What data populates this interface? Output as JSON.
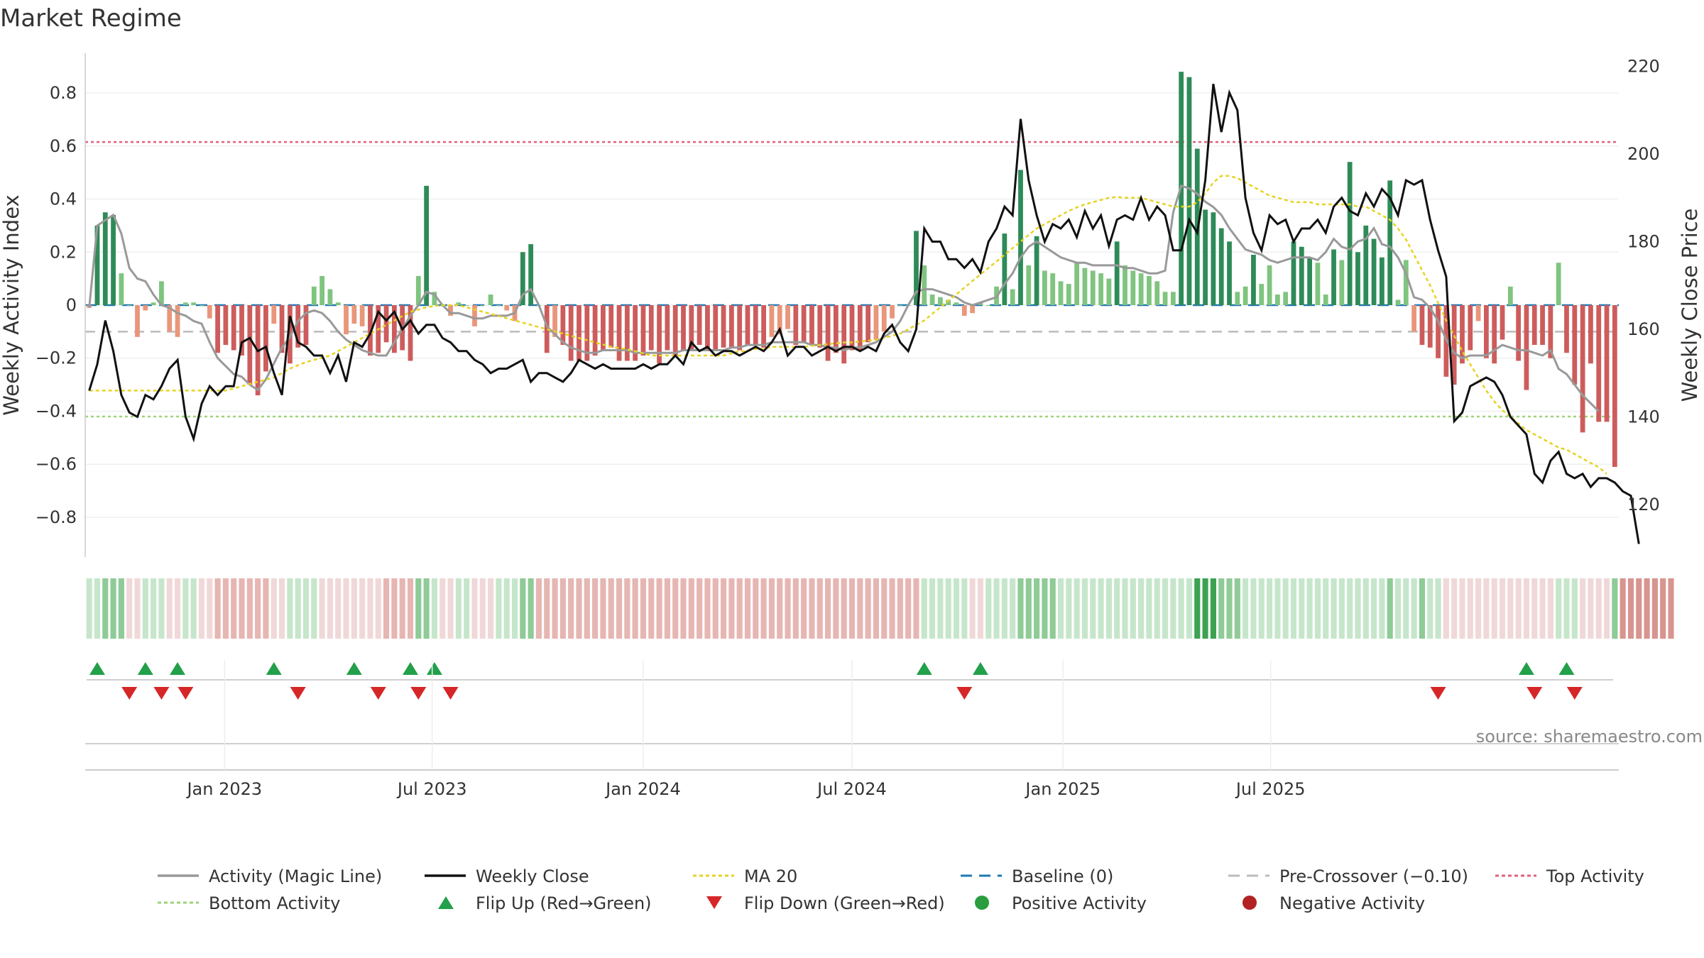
{
  "title": "Market Regime",
  "source": "source: sharemaestro.com",
  "colors": {
    "pos_strong": "#2e8b57",
    "pos_weak": "#7fc47f",
    "neg_strong": "#cd5c5c",
    "neg_weak": "#e9967a",
    "magic": "#999999",
    "close": "#111111",
    "ma": "#e6d320",
    "baseline": "#1f77b4",
    "precross": "#bbbbbb",
    "top": "#e0607e",
    "bottom": "#9ed37a",
    "flip_up": "#22a04a",
    "flip_down": "#d62728",
    "pos_dot": "#2a9d3f",
    "neg_dot": "#b22222"
  },
  "chart_data": {
    "type": "bar",
    "x_start": "2022-09-05",
    "x_step_days": 7,
    "y_left_label": "Weekly Activity Index",
    "y_right_label": "Weekly Close Price",
    "y_left_range": [
      -0.95,
      0.95
    ],
    "y_right_range": [
      108,
      223
    ],
    "y_left_ticks": [
      "0.8",
      "0.6",
      "0.4",
      "0.2",
      "0",
      "−0.2",
      "−0.4",
      "−0.6",
      "−0.8"
    ],
    "y_right_ticks": [
      "220",
      "200",
      "180",
      "160",
      "140",
      "120"
    ],
    "x_ticks": [
      "Jan 2023",
      "Jul 2023",
      "Jan 2024",
      "Jul 2024",
      "Jan 2025",
      "Jul 2025"
    ],
    "top_activity": 0.615,
    "bottom_activity": -0.42,
    "pre_crossover": -0.1,
    "baseline": 0,
    "grid": true,
    "legend_position": "bottom",
    "series": [
      {
        "name": "Weekly Activity Index (bars)",
        "values": [
          -0.01,
          0.3,
          0.35,
          0.34,
          0.12,
          0,
          -0.12,
          -0.02,
          0.01,
          0.09,
          -0.1,
          -0.12,
          0.01,
          0.01,
          0,
          -0.05,
          -0.18,
          -0.15,
          -0.17,
          -0.19,
          -0.3,
          -0.34,
          -0.25,
          -0.07,
          -0.18,
          -0.22,
          -0.16,
          -0.15,
          0.07,
          0.11,
          0.06,
          0.01,
          -0.11,
          -0.07,
          -0.08,
          -0.19,
          -0.18,
          -0.14,
          -0.18,
          -0.17,
          -0.21,
          0.11,
          0.45,
          0.05,
          0,
          -0.04,
          0.01,
          0,
          -0.08,
          0,
          0.04,
          0,
          -0.02,
          -0.06,
          0.2,
          0.23,
          0,
          -0.18,
          -0.12,
          -0.15,
          -0.21,
          -0.21,
          -0.21,
          -0.19,
          -0.17,
          -0.16,
          -0.21,
          -0.21,
          -0.21,
          -0.19,
          -0.17,
          -0.22,
          -0.17,
          -0.19,
          -0.17,
          -0.17,
          -0.15,
          -0.17,
          -0.17,
          -0.16,
          -0.16,
          -0.17,
          -0.15,
          -0.15,
          -0.16,
          -0.12,
          -0.11,
          -0.09,
          -0.15,
          -0.14,
          -0.15,
          -0.16,
          -0.21,
          -0.18,
          -0.22,
          -0.17,
          -0.17,
          -0.14,
          -0.13,
          -0.1,
          -0.05,
          0,
          0,
          0.28,
          0.15,
          0.04,
          0.03,
          0.02,
          0.01,
          -0.04,
          -0.03,
          0.01,
          0,
          0.07,
          0.27,
          0.06,
          0.51,
          0.15,
          0.26,
          0.13,
          0.12,
          0.09,
          0.08,
          0.16,
          0.14,
          0.13,
          0.12,
          0.1,
          0.24,
          0.15,
          0.13,
          0.12,
          0.11,
          0.09,
          0.05,
          0.05,
          0.88,
          0.86,
          0.59,
          0.36,
          0.35,
          0.29,
          0.24,
          0.05,
          0.07,
          0.19,
          0.08,
          0.15,
          0.04,
          0.05,
          0.24,
          0.22,
          0.18,
          0.16,
          0.04,
          0.21,
          0.17,
          0.54,
          0.2,
          0.3,
          0.25,
          0.18,
          0.47,
          0.02,
          0.17,
          -0.1,
          -0.15,
          -0.16,
          -0.2,
          -0.27,
          -0.3,
          -0.22,
          -0.17,
          -0.06,
          -0.2,
          -0.22,
          -0.13,
          0.07,
          -0.21,
          -0.32,
          -0.15,
          -0.15,
          -0.2,
          0.16,
          -0.18,
          -0.3,
          -0.48,
          -0.22,
          -0.44,
          -0.44,
          -0.61
        ]
      },
      {
        "name": "Activity (Magic Line)",
        "values": [
          -0.01,
          0.3,
          0.32,
          0.34,
          0.27,
          0.14,
          0.1,
          0.09,
          0.04,
          0,
          -0.01,
          -0.03,
          -0.04,
          -0.06,
          -0.07,
          -0.14,
          -0.2,
          -0.23,
          -0.26,
          -0.27,
          -0.3,
          -0.32,
          -0.28,
          -0.22,
          -0.16,
          -0.12,
          -0.06,
          -0.03,
          -0.02,
          -0.03,
          -0.06,
          -0.1,
          -0.13,
          -0.15,
          -0.17,
          -0.18,
          -0.19,
          -0.19,
          -0.14,
          -0.09,
          -0.04,
          0,
          0.05,
          0.04,
          0,
          -0.03,
          -0.03,
          -0.04,
          -0.05,
          -0.05,
          -0.04,
          -0.04,
          -0.04,
          -0.03,
          0.04,
          0.06,
          0,
          -0.08,
          -0.11,
          -0.14,
          -0.16,
          -0.17,
          -0.18,
          -0.18,
          -0.17,
          -0.17,
          -0.17,
          -0.17,
          -0.18,
          -0.18,
          -0.18,
          -0.18,
          -0.18,
          -0.18,
          -0.17,
          -0.17,
          -0.17,
          -0.17,
          -0.17,
          -0.17,
          -0.16,
          -0.16,
          -0.15,
          -0.15,
          -0.15,
          -0.14,
          -0.14,
          -0.14,
          -0.14,
          -0.14,
          -0.15,
          -0.15,
          -0.16,
          -0.16,
          -0.17,
          -0.16,
          -0.16,
          -0.15,
          -0.14,
          -0.12,
          -0.1,
          -0.06,
          0,
          0.05,
          0.06,
          0.06,
          0.05,
          0.04,
          0.03,
          0.01,
          0,
          0.01,
          0.02,
          0.03,
          0.08,
          0.12,
          0.18,
          0.22,
          0.24,
          0.22,
          0.2,
          0.18,
          0.17,
          0.16,
          0.16,
          0.15,
          0.15,
          0.15,
          0.15,
          0.14,
          0.14,
          0.13,
          0.12,
          0.12,
          0.13,
          0.35,
          0.45,
          0.44,
          0.42,
          0.39,
          0.37,
          0.34,
          0.29,
          0.25,
          0.21,
          0.2,
          0.19,
          0.17,
          0.16,
          0.17,
          0.18,
          0.18,
          0.18,
          0.17,
          0.2,
          0.25,
          0.22,
          0.21,
          0.24,
          0.25,
          0.29,
          0.23,
          0.22,
          0.18,
          0.12,
          0.03,
          0.02,
          -0.01,
          -0.06,
          -0.13,
          -0.18,
          -0.2,
          -0.19,
          -0.19,
          -0.19,
          -0.17,
          -0.15,
          -0.16,
          -0.17,
          -0.17,
          -0.18,
          -0.19,
          -0.17,
          -0.24,
          -0.26,
          -0.3,
          -0.34,
          -0.37,
          -0.4
        ]
      },
      {
        "name": "Weekly Close",
        "values": [
          146,
          152,
          162,
          155,
          145,
          141,
          140,
          145,
          144,
          147,
          151,
          153,
          140,
          135,
          143,
          147,
          145,
          147,
          147,
          157,
          158,
          155,
          156,
          150,
          145,
          163,
          157,
          156,
          154,
          154,
          150,
          154,
          148,
          157,
          156,
          159,
          164,
          162,
          164,
          160,
          162,
          159,
          161,
          161,
          158,
          157,
          155,
          155,
          153,
          152,
          150,
          151,
          151,
          152,
          153,
          148,
          150,
          150,
          149,
          148,
          150,
          153,
          152,
          151,
          152,
          151,
          151,
          151,
          151,
          152,
          151,
          152,
          152,
          154,
          152,
          157,
          155,
          156,
          154,
          155,
          155,
          154,
          155,
          156,
          155,
          157,
          160,
          154,
          156,
          156,
          154,
          155,
          156,
          155,
          156,
          156,
          155,
          156,
          155,
          159,
          161,
          157,
          155,
          160,
          183,
          180,
          180,
          176,
          176,
          174,
          176,
          173,
          180,
          183,
          188,
          186,
          208,
          194,
          186,
          180,
          184,
          183,
          185,
          181,
          187,
          183,
          186,
          179,
          185,
          186,
          185,
          190,
          185,
          188,
          186,
          178,
          178,
          185,
          182,
          194,
          216,
          205,
          214,
          210,
          190,
          182,
          178,
          186,
          184,
          185,
          180,
          183,
          183,
          185,
          182,
          188,
          190,
          187,
          186,
          191,
          188,
          192,
          190,
          186,
          194,
          193,
          194,
          185,
          178,
          172,
          139,
          141,
          147,
          148,
          149,
          148,
          145,
          140,
          138,
          136,
          127,
          125,
          130,
          132,
          127,
          126,
          127,
          124,
          126,
          126,
          125,
          123,
          122,
          111
        ]
      },
      {
        "name": "MA 20",
        "values": [
          146,
          146,
          146,
          146,
          146,
          146,
          146,
          146,
          146,
          146,
          146,
          146,
          146,
          146,
          146,
          146,
          146,
          146,
          146.5,
          147,
          147.5,
          148,
          148.5,
          149,
          150,
          151,
          151.8,
          152.5,
          153,
          153.5,
          154,
          155,
          156,
          157,
          158,
          159,
          160,
          161,
          162,
          163,
          164,
          164.5,
          165,
          165.3,
          165.5,
          165.5,
          165.5,
          165,
          164.5,
          164,
          163.5,
          163,
          162.5,
          162,
          161.5,
          161,
          160.5,
          160,
          159.5,
          159,
          158.5,
          158,
          157.5,
          157,
          156.5,
          156,
          155.7,
          155.4,
          155,
          154.5,
          154,
          154,
          154,
          154,
          154,
          154,
          154,
          154,
          154,
          154,
          154.5,
          155,
          155,
          155.5,
          155.5,
          156,
          156,
          156,
          156,
          156,
          156.2,
          156.4,
          156.6,
          156.8,
          157,
          157,
          157.2,
          157.4,
          157.6,
          158,
          158.5,
          159,
          160,
          161,
          162,
          163.5,
          165,
          166.5,
          168,
          169.5,
          171,
          172.5,
          174,
          175.5,
          177,
          178.5,
          180,
          181.5,
          183,
          184,
          185,
          186,
          187,
          187.8,
          188.5,
          189,
          189.5,
          190,
          190.2,
          190,
          190,
          190,
          189.5,
          189,
          188.5,
          188,
          188,
          188,
          189,
          191,
          193.5,
          195,
          195,
          194.5,
          193.5,
          192.5,
          191.5,
          190.5,
          190,
          189.5,
          189,
          189,
          189,
          188.5,
          188.5,
          188.5,
          188.5,
          188.5,
          188,
          188,
          187,
          186,
          185,
          183,
          180.5,
          177,
          173.5,
          170,
          166,
          162,
          158.5,
          155,
          152,
          149,
          146,
          143.5,
          141.5,
          140,
          138.5,
          137,
          136,
          135,
          134,
          133,
          132.5,
          131.5,
          130.5,
          129.5,
          128.5,
          127
        ]
      }
    ],
    "regime_strip": {
      "name": "Regime strip",
      "values": [
        1,
        1,
        2,
        2,
        2,
        -1,
        -1,
        1,
        1,
        1,
        -1,
        -1,
        1,
        1,
        -1,
        -1,
        -2,
        -2,
        -2,
        -2,
        -2,
        -2,
        -2,
        -1,
        -1,
        1,
        1,
        1,
        1,
        -1,
        -1,
        -1,
        -1,
        -1,
        -1,
        -1,
        -1,
        -2,
        -2,
        -2,
        -2,
        2,
        2,
        1,
        -1,
        -1,
        1,
        1,
        -1,
        -1,
        -1,
        1,
        1,
        1,
        2,
        2,
        -2,
        -2,
        -2,
        -2,
        -2,
        -2,
        -2,
        -2,
        -2,
        -2,
        -2,
        -2,
        -2,
        -2,
        -2,
        -2,
        -2,
        -2,
        -2,
        -2,
        -2,
        -2,
        -2,
        -2,
        -2,
        -2,
        -2,
        -2,
        -2,
        -2,
        -2,
        -2,
        -2,
        -2,
        -2,
        -2,
        -2,
        -2,
        -2,
        -2,
        -2,
        -2,
        -2,
        -2,
        -2,
        -2,
        -2,
        -2,
        1,
        1,
        1,
        1,
        1,
        1,
        -1,
        -1,
        1,
        1,
        1,
        1,
        2,
        2,
        2,
        2,
        2,
        1,
        1,
        1,
        1,
        1,
        1,
        1,
        1,
        1,
        1,
        1,
        1,
        1,
        1,
        1,
        1,
        1,
        3,
        3,
        3,
        2,
        2,
        2,
        1,
        1,
        1,
        1,
        1,
        1,
        1,
        1,
        1,
        1,
        1,
        1,
        1,
        1,
        1,
        1,
        1,
        1,
        2,
        1,
        1,
        1,
        2,
        1,
        1,
        -1,
        -1,
        -1,
        -1,
        -1,
        -1,
        -1,
        -1,
        -1,
        -1,
        -1,
        -1,
        -1,
        -1,
        1,
        1,
        1,
        -1,
        -1,
        -1,
        -1,
        2,
        -2,
        -2,
        -2,
        -2,
        -2,
        -2,
        -2
      ]
    },
    "flip_up_weeks": [
      1,
      7,
      11,
      23,
      33,
      40,
      43,
      104,
      111,
      179,
      184
    ],
    "flip_down_weeks": [
      5,
      9,
      12,
      26,
      36,
      41,
      45,
      109,
      168,
      180,
      185
    ]
  },
  "legend": [
    {
      "key": "magic",
      "label": "Activity (Magic Line)",
      "kind": "line"
    },
    {
      "key": "close",
      "label": "Weekly Close",
      "kind": "line"
    },
    {
      "key": "ma",
      "label": "MA 20",
      "kind": "dotted"
    },
    {
      "key": "baseline",
      "label": "Baseline (0)",
      "kind": "dashed"
    },
    {
      "key": "precross",
      "label": "Pre-Crossover (−0.10)",
      "kind": "dashed"
    },
    {
      "key": "top",
      "label": "Top Activity",
      "kind": "dotted"
    },
    {
      "key": "bottom",
      "label": "Bottom Activity",
      "kind": "dotted"
    },
    {
      "key": "flip_up",
      "label": "Flip Up (Red→Green)",
      "kind": "tri-up"
    },
    {
      "key": "flip_down",
      "label": "Flip Down (Green→Red)",
      "kind": "tri-down"
    },
    {
      "key": "pos_dot",
      "label": "Positive Activity",
      "kind": "dot"
    },
    {
      "key": "neg_dot",
      "label": "Negative Activity",
      "kind": "dot"
    }
  ]
}
